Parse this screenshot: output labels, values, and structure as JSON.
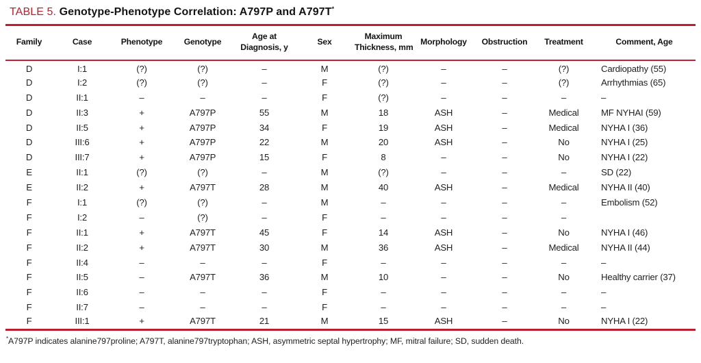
{
  "colors": {
    "accent_red": "#bb202e",
    "text": "#1f1c1d"
  },
  "table": {
    "label": "TABLE 5.",
    "title": "Genotype-Phenotype Correlation: A797P and A797T",
    "title_marker": "*",
    "columns": [
      "Family",
      "Case",
      "Phenotype",
      "Genotype",
      "Age at\nDiagnosis, y",
      "Sex",
      "Maximum\nThickness, mm",
      "Morphology",
      "Obstruction",
      "Treatment",
      "Comment, Age"
    ],
    "column_keys": [
      "family",
      "case",
      "phenotype",
      "genotype",
      "age-at-diagnosis",
      "sex",
      "max-thickness",
      "morphology",
      "obstruction",
      "treatment",
      "comment-age"
    ],
    "rows": [
      [
        "D",
        "I:1",
        "(?)",
        "(?)",
        "–",
        "M",
        "(?)",
        "–",
        "–",
        "(?)",
        "Cardiopathy (55)"
      ],
      [
        "D",
        "I:2",
        "(?)",
        "(?)",
        "–",
        "F",
        "(?)",
        "–",
        "–",
        "(?)",
        "Arrhythmias (65)"
      ],
      [
        "D",
        "II:1",
        "–",
        "–",
        "–",
        "F",
        "(?)",
        "–",
        "–",
        "–",
        "–"
      ],
      [
        "D",
        "II:3",
        "+",
        "A797P",
        "55",
        "M",
        "18",
        "ASH",
        "–",
        "Medical",
        "MF NYHAI (59)"
      ],
      [
        "D",
        "II:5",
        "+",
        "A797P",
        "34",
        "F",
        "19",
        "ASH",
        "–",
        "Medical",
        "NYHA I (36)"
      ],
      [
        "D",
        "III:6",
        "+",
        "A797P",
        "22",
        "M",
        "20",
        "ASH",
        "–",
        "No",
        "NYHA I (25)"
      ],
      [
        "D",
        "III:7",
        "+",
        "A797P",
        "15",
        "F",
        "8",
        "–",
        "–",
        "No",
        "NYHA I (22)"
      ],
      [
        "E",
        "II:1",
        "(?)",
        "(?)",
        "–",
        "M",
        "(?)",
        "–",
        "–",
        "–",
        "SD (22)"
      ],
      [
        "E",
        "II:2",
        "+",
        "A797T",
        "28",
        "M",
        "40",
        "ASH",
        "–",
        "Medical",
        "NYHA II (40)"
      ],
      [
        "F",
        "I:1",
        "(?)",
        "(?)",
        "–",
        "M",
        "–",
        "–",
        "–",
        "–",
        "Embolism (52)"
      ],
      [
        "F",
        "I:2",
        "–",
        "(?)",
        "–",
        "F",
        "–",
        "–",
        "–",
        "–",
        ""
      ],
      [
        "F",
        "II:1",
        "+",
        "A797T",
        "45",
        "F",
        "14",
        "ASH",
        "–",
        "No",
        "NYHA I (46)"
      ],
      [
        "F",
        "II:2",
        "+",
        "A797T",
        "30",
        "M",
        "36",
        "ASH",
        "–",
        "Medical",
        "NYHA II (44)"
      ],
      [
        "F",
        "II:4",
        "–",
        "–",
        "–",
        "F",
        "–",
        "–",
        "–",
        "–",
        "–"
      ],
      [
        "F",
        "II:5",
        "–",
        "A797T",
        "36",
        "M",
        "10",
        "–",
        "–",
        "No",
        "Healthy carrier (37)"
      ],
      [
        "F",
        "II:6",
        "–",
        "–",
        "–",
        "F",
        "–",
        "–",
        "–",
        "–",
        "–"
      ],
      [
        "F",
        "II:7",
        "–",
        "–",
        "–",
        "F",
        "–",
        "–",
        "–",
        "–",
        "–"
      ],
      [
        "F",
        "III:1",
        "+",
        "A797T",
        "21",
        "M",
        "15",
        "ASH",
        "–",
        "No",
        "NYHA I (22)"
      ]
    ],
    "footnote_marker": "*",
    "footnote": "A797P indicates alanine797proline; A797T, alanine797tryptophan; ASH, asymmetric septal hypertrophy; MF, mitral failure; SD, sudden death."
  }
}
